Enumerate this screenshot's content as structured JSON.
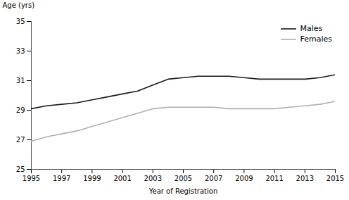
{
  "chart_data": {
    "type": "line",
    "x": [
      1995,
      1996,
      1997,
      1998,
      1999,
      2000,
      2001,
      2002,
      2003,
      2004,
      2005,
      2006,
      2007,
      2008,
      2009,
      2010,
      2011,
      2012,
      2013,
      2014,
      2015
    ],
    "series": [
      {
        "name": "Males",
        "color": "#1a1a1a",
        "values": [
          29.1,
          29.3,
          29.4,
          29.5,
          29.7,
          29.9,
          30.1,
          30.3,
          30.7,
          31.1,
          31.2,
          31.3,
          31.3,
          31.3,
          31.2,
          31.1,
          31.1,
          31.1,
          31.1,
          31.2,
          31.4
        ]
      },
      {
        "name": "Females",
        "color": "#b0b0b0",
        "values": [
          26.9,
          27.2,
          27.4,
          27.6,
          27.9,
          28.2,
          28.5,
          28.8,
          29.1,
          29.2,
          29.2,
          29.2,
          29.2,
          29.1,
          29.1,
          29.1,
          29.1,
          29.2,
          29.3,
          29.4,
          29.6
        ]
      }
    ],
    "xlabel": "Year of Registration",
    "ylabel": "Age (yrs)",
    "xlim": [
      1995,
      2015
    ],
    "xticks": [
      1995,
      1997,
      1999,
      2001,
      2003,
      2005,
      2007,
      2009,
      2011,
      2013,
      2015
    ],
    "ylim": [
      25,
      35
    ],
    "yticks": [
      25,
      27,
      29,
      31,
      33,
      35
    ],
    "grid": false,
    "legend": "upper right"
  }
}
